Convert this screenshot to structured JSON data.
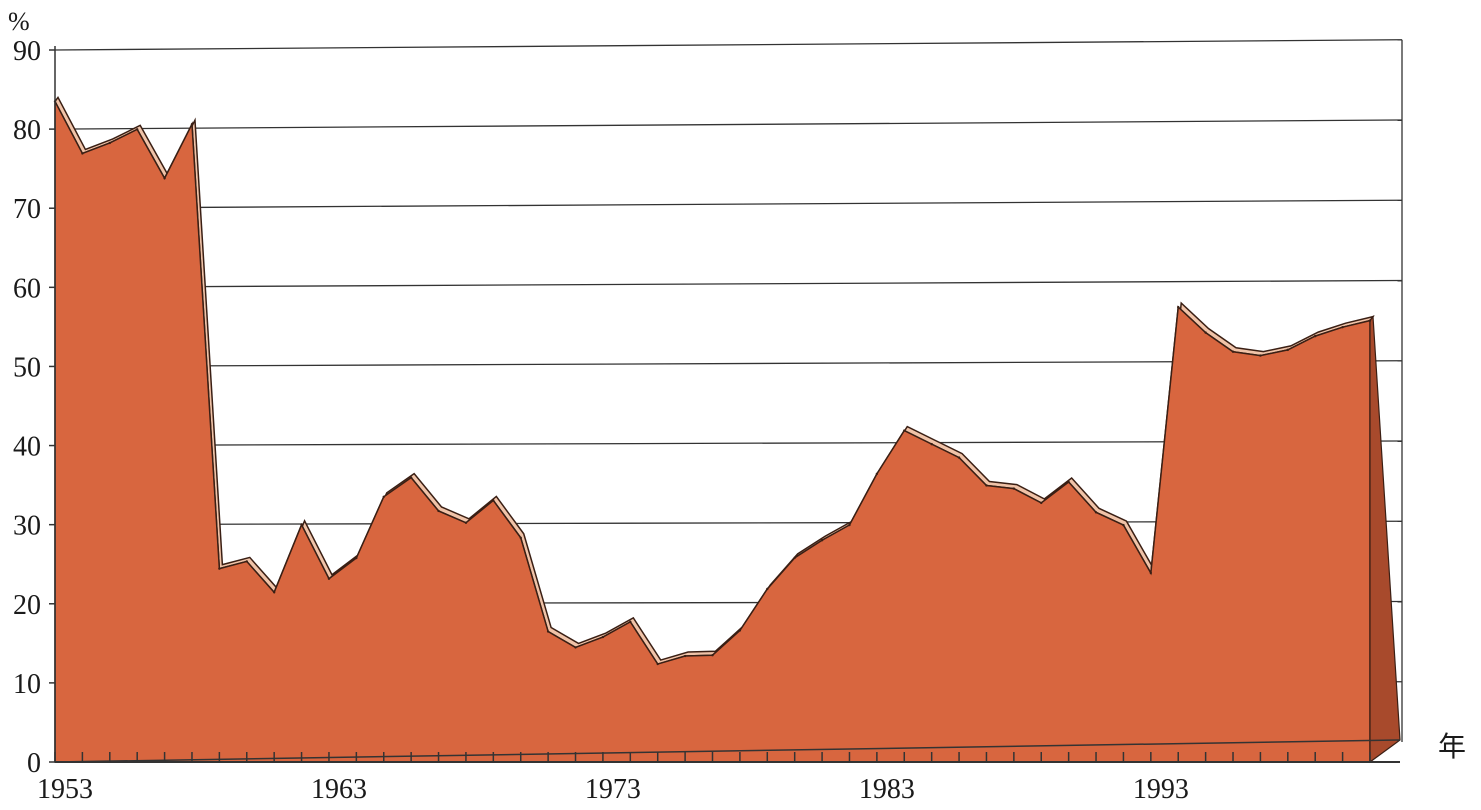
{
  "chart_data": {
    "type": "area",
    "title": "",
    "ylabel": "%",
    "xlabel": "年",
    "ylim": [
      0,
      90
    ],
    "yticks": [
      0,
      10,
      20,
      30,
      40,
      50,
      60,
      70,
      80,
      90
    ],
    "xlim": [
      1953,
      2000
    ],
    "xtick_labels": [
      "1953",
      "1963",
      "1973",
      "1983",
      "1993"
    ],
    "grid": true,
    "colors": {
      "fill": "#d8663f",
      "edge": "#3a1f14",
      "grid": "#333333",
      "highlight": "#f0c3a8"
    },
    "series": [
      {
        "x": [
          1953,
          1954,
          1955,
          1956,
          1957,
          1958,
          1959,
          1960,
          1961,
          1962,
          1963,
          1964,
          1965,
          1966,
          1967,
          1968,
          1969,
          1970,
          1971,
          1972,
          1973,
          1974,
          1975,
          1976,
          1977,
          1978,
          1979,
          1980,
          1981,
          1982,
          1983,
          1984,
          1985,
          1986,
          1987,
          1988,
          1989,
          1990,
          1991,
          1992,
          1993,
          1994,
          1995,
          1996,
          1997,
          1998,
          1999,
          2000,
          2001
        ],
        "values": [
          83.5,
          76.9,
          78.2,
          79.9,
          73.7,
          80.5,
          24.4,
          25.3,
          21.4,
          29.9,
          23.1,
          25.7,
          33.4,
          35.8,
          31.6,
          30.1,
          32.9,
          28.2,
          16.4,
          14.4,
          15.7,
          17.6,
          12.3,
          13.3,
          13.4,
          16.5,
          21.7,
          25.6,
          27.8,
          29.7,
          36.1,
          41.5,
          39.8,
          38.1,
          34.6,
          34.2,
          32.4,
          35.0,
          31.2,
          29.6,
          23.6,
          56.8,
          53.6,
          51.2,
          50.7,
          51.4,
          53.1,
          54.2,
          55.0
        ]
      }
    ]
  }
}
